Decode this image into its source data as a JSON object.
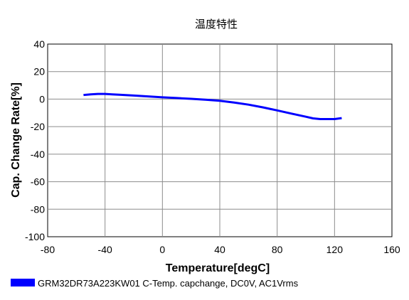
{
  "chart_data": {
    "type": "line",
    "title": "温度特性",
    "xlabel": "Temperature[degC]",
    "ylabel": "Cap. Change Rate[%]",
    "xlim": [
      -80,
      160
    ],
    "ylim": [
      -100,
      40
    ],
    "xticks": [
      -80,
      -40,
      0,
      40,
      80,
      120,
      160
    ],
    "yticks": [
      40,
      20,
      0,
      -20,
      -40,
      -60,
      -80,
      -100
    ],
    "grid": true,
    "legend_position": "bottom-left",
    "series": [
      {
        "name": "GRM32DR73A223KW01 C-Temp. capchange, DC0V, AC1Vrms",
        "color": "#0000ff",
        "x": [
          -55,
          -50,
          -45,
          -40,
          -35,
          -30,
          -20,
          -10,
          0,
          10,
          20,
          30,
          40,
          50,
          60,
          70,
          80,
          90,
          100,
          105,
          110,
          115,
          120,
          125
        ],
        "y": [
          3.0,
          3.5,
          3.8,
          3.8,
          3.5,
          3.2,
          2.6,
          2.0,
          1.3,
          0.8,
          0.2,
          -0.4,
          -1.2,
          -2.5,
          -4.0,
          -6.0,
          -8.2,
          -10.5,
          -12.8,
          -14.0,
          -14.5,
          -14.5,
          -14.5,
          -13.8
        ]
      }
    ]
  }
}
